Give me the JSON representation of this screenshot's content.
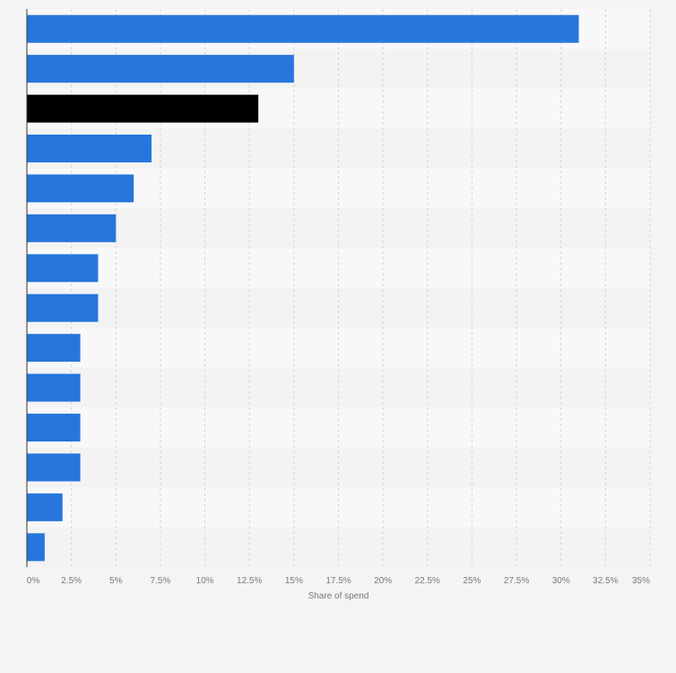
{
  "chart_data": {
    "type": "bar",
    "orientation": "horizontal",
    "xlabel": "Share of spend",
    "xlim": [
      0,
      35
    ],
    "ticks": [
      {
        "value": 0,
        "label": "0%"
      },
      {
        "value": 2.5,
        "label": "2.5%"
      },
      {
        "value": 5,
        "label": "5%"
      },
      {
        "value": 7.5,
        "label": "7.5%"
      },
      {
        "value": 10,
        "label": "10%"
      },
      {
        "value": 12.5,
        "label": "12.5%"
      },
      {
        "value": 15,
        "label": "15%"
      },
      {
        "value": 17.5,
        "label": "17.5%"
      },
      {
        "value": 20,
        "label": "20%"
      },
      {
        "value": 22.5,
        "label": "22.5%"
      },
      {
        "value": 25,
        "label": "25%"
      },
      {
        "value": 27.5,
        "label": "27.5%"
      },
      {
        "value": 30,
        "label": "30%"
      },
      {
        "value": 32.5,
        "label": "32.5%"
      },
      {
        "value": 35,
        "label": "35%"
      }
    ],
    "values": [
      31,
      15,
      13,
      7,
      6,
      5,
      4,
      4,
      3,
      3,
      3,
      3,
      2,
      1
    ],
    "bar_colors": [
      "#2776dd",
      "#2776dd",
      "#000000",
      "#2776dd",
      "#2776dd",
      "#2776dd",
      "#2776dd",
      "#2776dd",
      "#2776dd",
      "#2776dd",
      "#2776dd",
      "#2776dd",
      "#2776dd",
      "#2776dd"
    ],
    "grid": true,
    "legend": "none"
  },
  "colors": {
    "bar": "#2776dd",
    "highlight": "#000000",
    "band_light": "#f8f8f8",
    "band_dark": "#f3f3f3",
    "grid": "#d6d6d6",
    "axis": "#333333",
    "background": "#f4f4f4"
  }
}
